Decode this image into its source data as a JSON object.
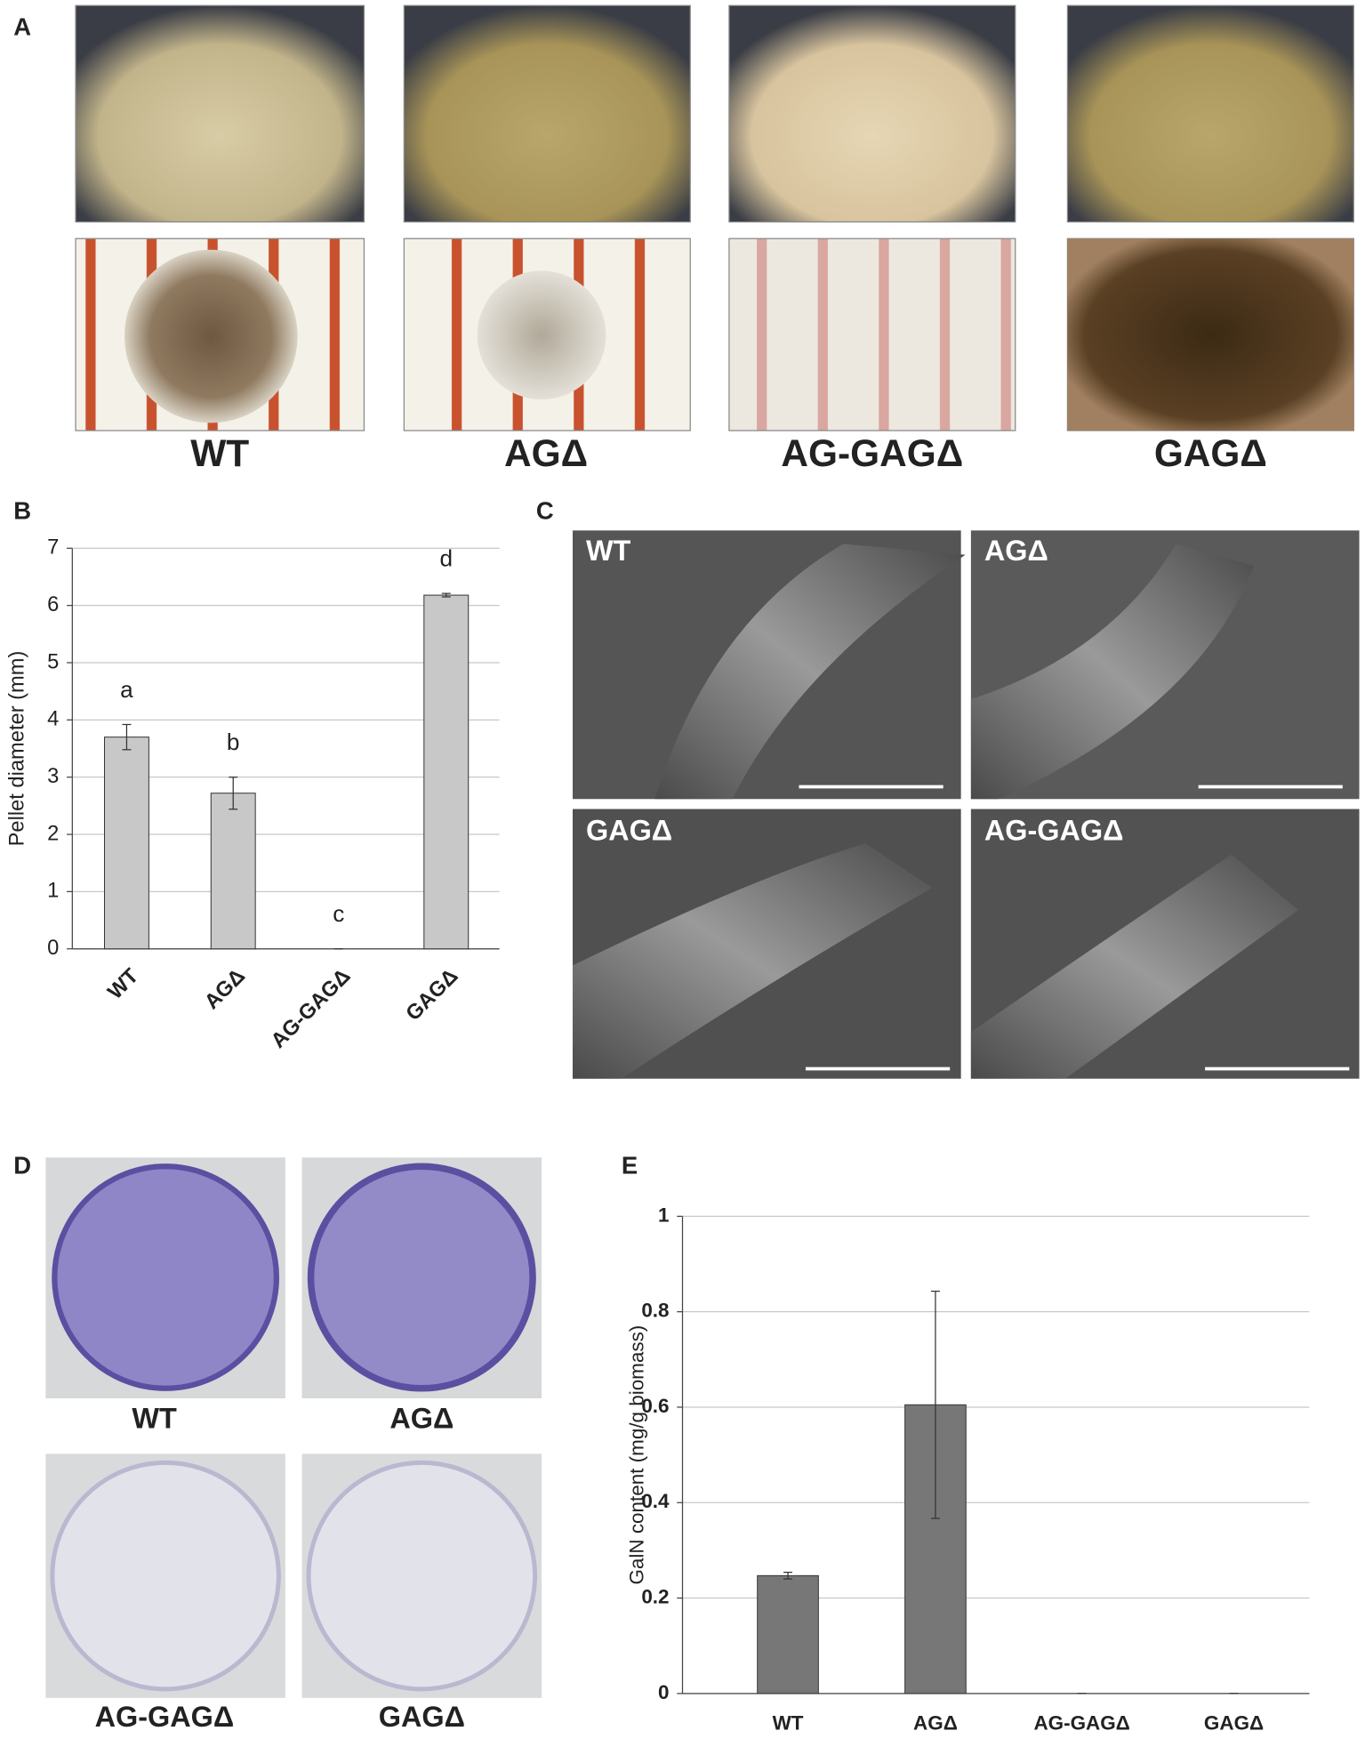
{
  "panels": {
    "A": {
      "label": "A",
      "captions": [
        "WT",
        "AGΔ",
        "AG-GAGΔ",
        "GAGΔ"
      ]
    },
    "B": {
      "label": "B"
    },
    "C": {
      "label": "C",
      "image_labels": [
        "WT",
        "AGΔ",
        "GAGΔ",
        "AG-GAGΔ"
      ]
    },
    "D": {
      "label": "D",
      "captions": [
        "WT",
        "AGΔ",
        "AG-GAGΔ",
        "GAGΔ"
      ]
    },
    "E": {
      "label": "E"
    }
  },
  "chart_data": [
    {
      "type": "bar",
      "y_label": "Pellet diameter (mm)",
      "categories": [
        "WT",
        "AGΔ",
        "AG-GAGΔ",
        "GAGΔ"
      ],
      "values": [
        3.7,
        2.72,
        0,
        6.18
      ],
      "errors": [
        0.22,
        0.28,
        0,
        0.03
      ],
      "annotations": [
        "a",
        "b",
        "c",
        "d"
      ],
      "color": "#c8c8c8",
      "ylim": [
        0,
        7
      ],
      "yticks": [
        0,
        1,
        2,
        3,
        4,
        5,
        6,
        7
      ],
      "grid": true
    },
    {
      "type": "bar",
      "y_label": "GalN content (mg/g biomass)",
      "categories": [
        "WT",
        "AGΔ",
        "AG-GAGΔ",
        "GAGΔ"
      ],
      "values": [
        0.247,
        0.605,
        0,
        0
      ],
      "errors": [
        0.007,
        0.238,
        0,
        0
      ],
      "color": "#777777",
      "ylim": [
        0,
        1
      ],
      "yticks": [
        0,
        0.2,
        0.4,
        0.6,
        0.8,
        1
      ],
      "grid": true
    }
  ]
}
